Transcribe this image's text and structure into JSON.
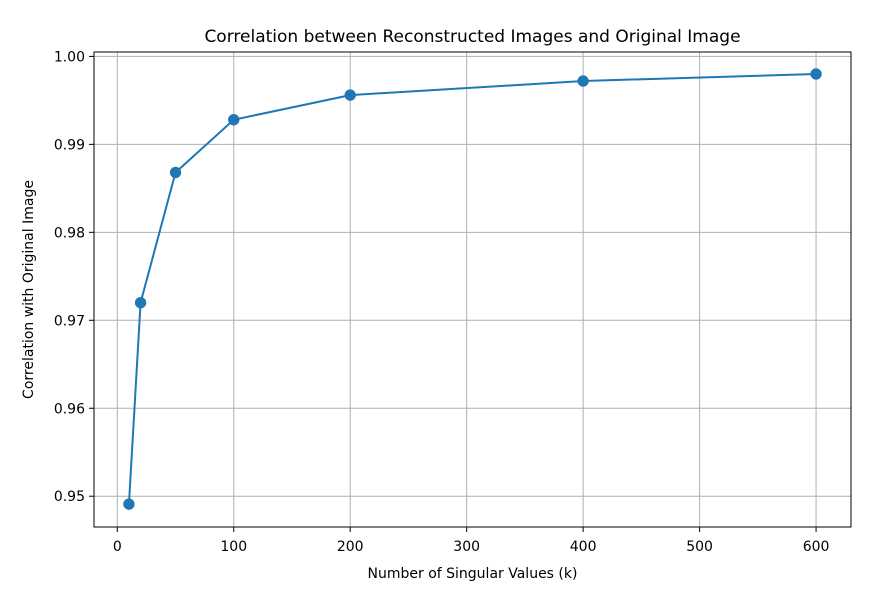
{
  "chart_data": {
    "type": "line",
    "title": "Correlation between Reconstructed Images and Original Image",
    "xlabel": "Number of Singular Values (k)",
    "ylabel": "Correlation with Original Image",
    "xlim": [
      -20,
      630
    ],
    "ylim": [
      0.9465,
      1.0005
    ],
    "x_ticks": [
      0,
      100,
      200,
      300,
      400,
      500,
      600
    ],
    "x_tick_labels": [
      "0",
      "100",
      "200",
      "300",
      "400",
      "500",
      "600"
    ],
    "y_ticks": [
      0.95,
      0.96,
      0.97,
      0.98,
      0.99,
      1.0
    ],
    "y_tick_labels": [
      "0.95",
      "0.96",
      "0.97",
      "0.98",
      "0.99",
      "1.00"
    ],
    "grid": true,
    "series": [
      {
        "x": [
          10,
          20,
          50,
          100,
          200,
          400,
          600
        ],
        "values": [
          0.9491,
          0.972,
          0.9868,
          0.9928,
          0.9956,
          0.9972,
          0.998
        ],
        "color": "#1f77b4",
        "marker": "circle"
      }
    ]
  }
}
